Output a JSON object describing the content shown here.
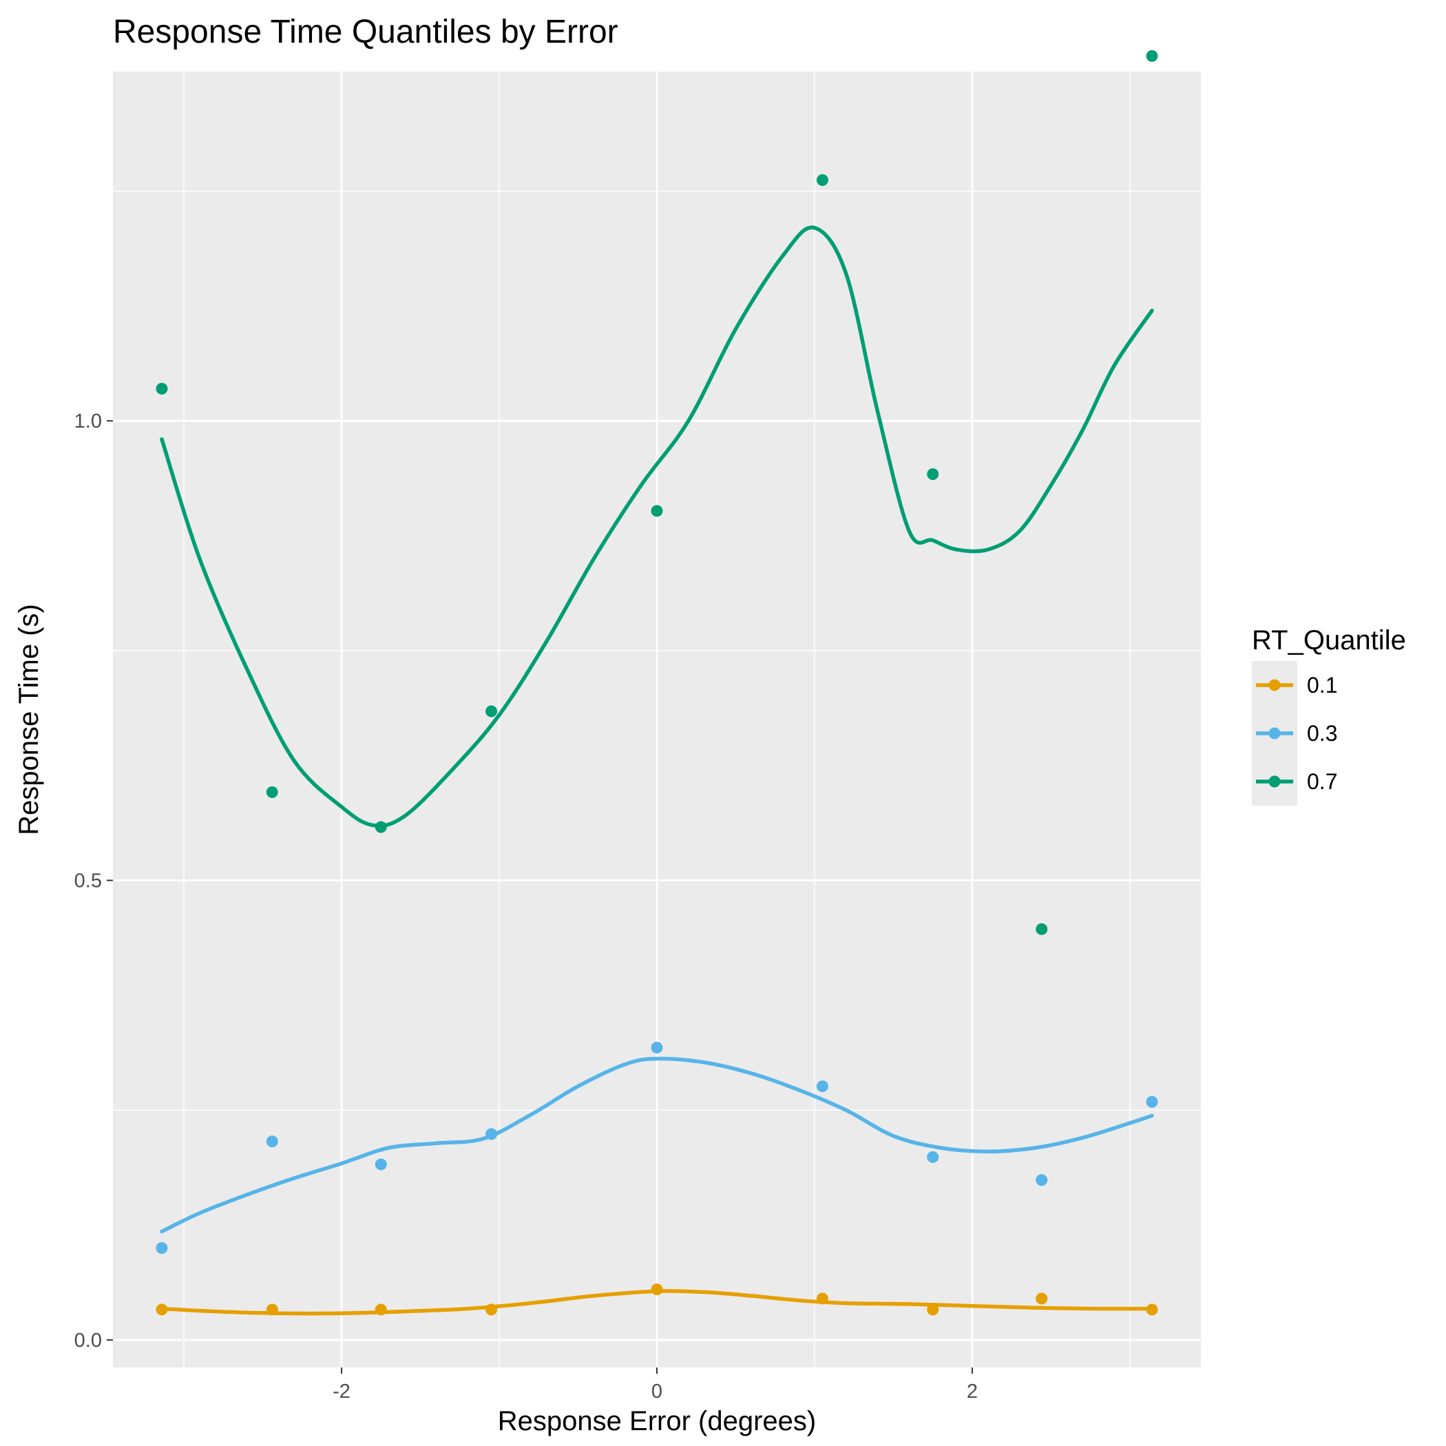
{
  "chart_data": {
    "type": "scatter",
    "title": "Response Time Quantiles by Error",
    "xlabel": "Response Error (degrees)",
    "ylabel": "Response Time (s)",
    "xlim": [
      -3.45,
      3.45
    ],
    "ylim": [
      -0.03,
      1.38
    ],
    "x_ticks": [
      -2,
      0,
      2
    ],
    "x_tick_labels": [
      "-2",
      "0",
      "2"
    ],
    "y_ticks": [
      0.0,
      0.5,
      1.0
    ],
    "y_tick_labels": [
      "0.0",
      "0.5",
      "1.0"
    ],
    "grid": true,
    "legend": {
      "title": "RT_Quantile",
      "position": "right"
    },
    "x": [
      -3.14,
      -2.44,
      -1.75,
      -1.05,
      0.0,
      1.05,
      1.75,
      2.44,
      3.14
    ],
    "series": [
      {
        "name": "0.1",
        "color": "#E69F00",
        "points": [
          0.033,
          0.033,
          0.033,
          0.033,
          0.055,
          0.045,
          0.033,
          0.045,
          0.033
        ],
        "smooth": {
          "x": [
            -3.14,
            -2.8,
            -2.4,
            -2.0,
            -1.6,
            -1.2,
            -0.8,
            -0.4,
            0.0,
            0.3,
            0.6,
            0.9,
            1.2,
            1.6,
            2.0,
            2.4,
            2.8,
            3.14
          ],
          "y": [
            0.034,
            0.031,
            0.029,
            0.029,
            0.031,
            0.034,
            0.04,
            0.048,
            0.053,
            0.052,
            0.048,
            0.043,
            0.04,
            0.039,
            0.037,
            0.035,
            0.034,
            0.034
          ]
        }
      },
      {
        "name": "0.3",
        "color": "#56B4E9",
        "points": [
          0.1,
          0.216,
          0.191,
          0.224,
          0.318,
          0.276,
          0.199,
          0.174,
          0.259
        ],
        "smooth": {
          "x": [
            -3.14,
            -2.9,
            -2.6,
            -2.3,
            -2.0,
            -1.7,
            -1.4,
            -1.1,
            -0.8,
            -0.5,
            -0.2,
            0.0,
            0.3,
            0.6,
            0.9,
            1.2,
            1.5,
            1.8,
            2.1,
            2.4,
            2.7,
            3.0,
            3.14
          ],
          "y": [
            0.118,
            0.138,
            0.158,
            0.176,
            0.192,
            0.209,
            0.214,
            0.219,
            0.245,
            0.276,
            0.3,
            0.306,
            0.302,
            0.29,
            0.272,
            0.25,
            0.222,
            0.209,
            0.205,
            0.209,
            0.22,
            0.236,
            0.244
          ]
        }
      },
      {
        "name": "0.7",
        "color": "#009E73",
        "points": [
          1.035,
          0.596,
          0.558,
          0.684,
          0.902,
          1.262,
          0.942,
          0.447,
          1.397
        ],
        "smooth": {
          "x": [
            -3.14,
            -2.9,
            -2.6,
            -2.3,
            -2.0,
            -1.8,
            -1.6,
            -1.3,
            -1.0,
            -0.7,
            -0.4,
            -0.1,
            0.2,
            0.5,
            0.8,
            1.0,
            1.2,
            1.4,
            1.6,
            1.75,
            1.9,
            2.1,
            2.3,
            2.5,
            2.7,
            2.9,
            3.14
          ],
          "y": [
            0.98,
            0.85,
            0.73,
            0.63,
            0.58,
            0.56,
            0.57,
            0.62,
            0.68,
            0.76,
            0.85,
            0.93,
            1.0,
            1.1,
            1.18,
            1.21,
            1.16,
            1.01,
            0.88,
            0.87,
            0.86,
            0.86,
            0.88,
            0.93,
            0.99,
            1.06,
            1.12
          ]
        }
      }
    ]
  }
}
